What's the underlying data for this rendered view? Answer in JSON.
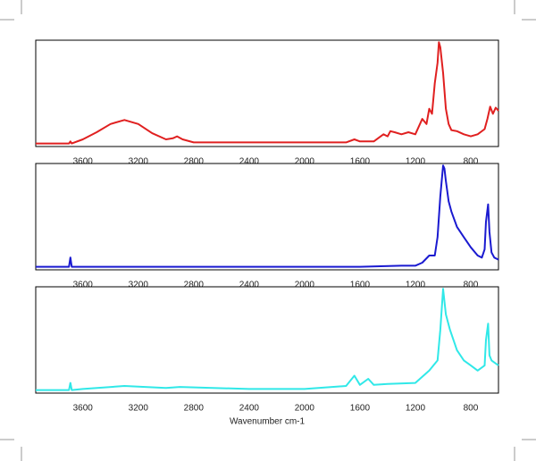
{
  "chart_data": [
    {
      "type": "line",
      "x": [
        3940,
        3700,
        3690,
        3680,
        3600,
        3500,
        3400,
        3300,
        3200,
        3100,
        3000,
        2950,
        2920,
        2880,
        2800,
        2400,
        2000,
        1700,
        1640,
        1600,
        1500,
        1450,
        1430,
        1400,
        1380,
        1350,
        1300,
        1250,
        1200,
        1150,
        1120,
        1100,
        1080,
        1060,
        1040,
        1030,
        1020,
        1000,
        980,
        960,
        940,
        900,
        850,
        800,
        750,
        700,
        680,
        660,
        640,
        620,
        600
      ],
      "series": [
        {
          "color": "#e02020",
          "values": [
            0.01,
            0.01,
            0.03,
            0.01,
            0.05,
            0.12,
            0.2,
            0.24,
            0.2,
            0.11,
            0.05,
            0.06,
            0.08,
            0.05,
            0.02,
            0.02,
            0.02,
            0.02,
            0.05,
            0.03,
            0.03,
            0.08,
            0.1,
            0.08,
            0.13,
            0.12,
            0.1,
            0.12,
            0.1,
            0.25,
            0.2,
            0.35,
            0.3,
            0.6,
            0.8,
            1.0,
            0.95,
            0.7,
            0.35,
            0.2,
            0.14,
            0.13,
            0.1,
            0.08,
            0.1,
            0.15,
            0.25,
            0.37,
            0.3,
            0.36,
            0.33
          ]
        }
      ],
      "xlim": [
        3940,
        600
      ],
      "ylim": [
        -0.02,
        1.02
      ],
      "xticks": [
        3600,
        3200,
        2800,
        2400,
        2000,
        1600,
        1200,
        800
      ]
    },
    {
      "type": "line",
      "x": [
        3940,
        3700,
        3690,
        3680,
        3600,
        3000,
        2400,
        2000,
        1600,
        1300,
        1200,
        1150,
        1100,
        1060,
        1040,
        1020,
        1000,
        990,
        980,
        960,
        940,
        900,
        850,
        800,
        750,
        720,
        700,
        690,
        675,
        665,
        650,
        630,
        600
      ],
      "series": [
        {
          "color": "#1a1ad0",
          "values": [
            0.01,
            0.01,
            0.1,
            0.01,
            0.01,
            0.01,
            0.01,
            0.01,
            0.01,
            0.02,
            0.02,
            0.05,
            0.12,
            0.12,
            0.3,
            0.7,
            1.0,
            0.97,
            0.85,
            0.65,
            0.55,
            0.4,
            0.3,
            0.2,
            0.12,
            0.1,
            0.18,
            0.45,
            0.62,
            0.35,
            0.15,
            0.1,
            0.08
          ]
        }
      ],
      "xlim": [
        3940,
        600
      ],
      "ylim": [
        -0.02,
        1.02
      ],
      "xticks": [
        3600,
        3200,
        2800,
        2400,
        2000,
        1600,
        1200,
        800
      ]
    },
    {
      "type": "line",
      "x": [
        3940,
        3700,
        3690,
        3680,
        3600,
        3300,
        3000,
        2900,
        2400,
        2000,
        1700,
        1640,
        1600,
        1540,
        1500,
        1400,
        1200,
        1100,
        1040,
        1020,
        1000,
        980,
        950,
        900,
        850,
        800,
        750,
        700,
        690,
        675,
        665,
        650,
        630,
        600
      ],
      "series": [
        {
          "color": "#30e8e8",
          "values": [
            0.01,
            0.01,
            0.08,
            0.01,
            0.02,
            0.05,
            0.03,
            0.04,
            0.02,
            0.02,
            0.05,
            0.15,
            0.06,
            0.12,
            0.06,
            0.07,
            0.08,
            0.2,
            0.3,
            0.6,
            1.0,
            0.75,
            0.6,
            0.4,
            0.3,
            0.25,
            0.2,
            0.25,
            0.5,
            0.66,
            0.35,
            0.3,
            0.28,
            0.25
          ]
        }
      ],
      "xlim": [
        3940,
        600
      ],
      "ylim": [
        -0.02,
        1.02
      ],
      "xticks": [
        3600,
        3200,
        2800,
        2400,
        2000,
        1600,
        1200,
        800
      ],
      "xlabel": "Wavenumber cm-1"
    }
  ]
}
